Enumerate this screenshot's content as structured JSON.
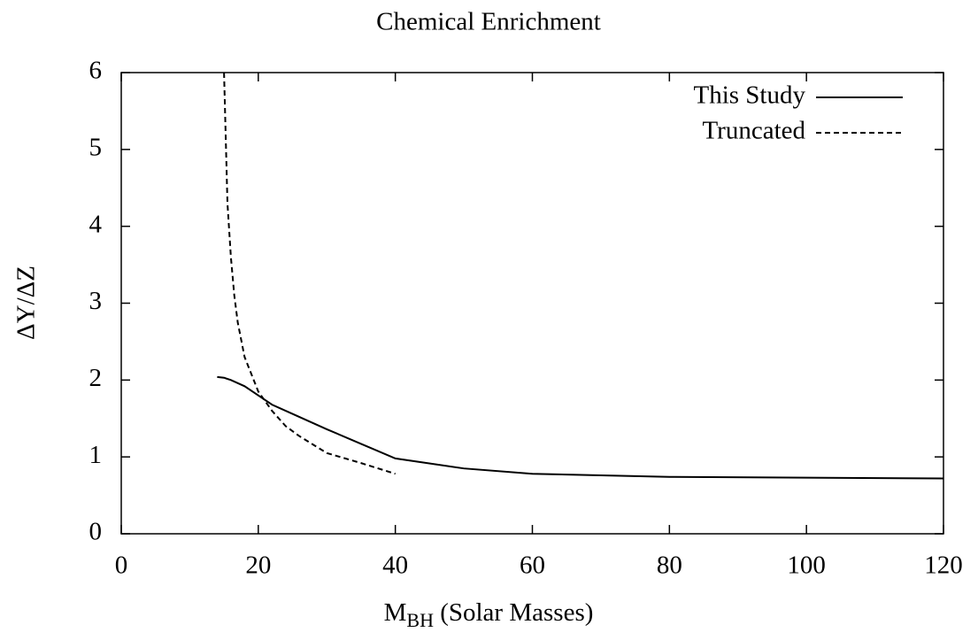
{
  "chart_data": {
    "type": "line",
    "title": "Chemical Enrichment",
    "xlabel": {
      "main": "M",
      "sub": "BH",
      "rest": " (Solar Masses)"
    },
    "ylabel": "ΔY/ΔZ",
    "xlim": [
      0,
      120
    ],
    "xticks": [
      0,
      20,
      40,
      60,
      80,
      100,
      120
    ],
    "ylim": [
      0,
      6
    ],
    "yticks": [
      0,
      1,
      2,
      3,
      4,
      5,
      6
    ],
    "legend": "upper right",
    "series": [
      {
        "name": "This Study",
        "color": "#000000",
        "style": "solid",
        "x": [
          14,
          15,
          16,
          18,
          20,
          22,
          25,
          30,
          35,
          40,
          50,
          60,
          80,
          100,
          120
        ],
        "values": [
          2.04,
          2.03,
          2.0,
          1.92,
          1.8,
          1.68,
          1.56,
          1.36,
          1.17,
          0.98,
          0.85,
          0.78,
          0.74,
          0.73,
          0.72
        ]
      },
      {
        "name": "Truncated",
        "color": "#000000",
        "style": "dashed",
        "x": [
          15,
          15.5,
          16,
          16.5,
          17,
          18,
          20,
          22,
          24,
          26,
          30,
          35,
          40
        ],
        "values": [
          6,
          4.3,
          3.6,
          3.1,
          2.75,
          2.3,
          1.85,
          1.6,
          1.4,
          1.27,
          1.05,
          0.92,
          0.78
        ]
      }
    ]
  }
}
